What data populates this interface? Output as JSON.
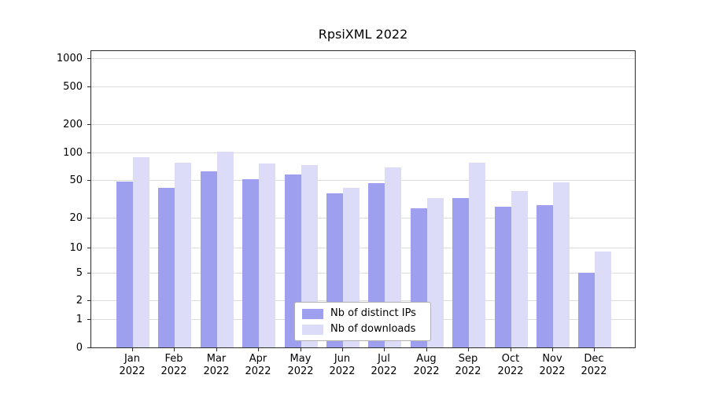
{
  "title": "RpsiXML 2022",
  "chart_data": {
    "type": "bar",
    "categories": [
      "Jan 2022",
      "Feb 2022",
      "Mar 2022",
      "Apr 2022",
      "May 2022",
      "Jun 2022",
      "Jul 2022",
      "Aug 2022",
      "Sep 2022",
      "Oct 2022",
      "Nov 2022",
      "Dec 2022"
    ],
    "series": [
      {
        "name": "Nb of distinct IPs",
        "color": "#9f9ff0",
        "values": [
          48,
          41,
          62,
          51,
          57,
          36,
          46,
          25,
          32,
          26,
          27,
          5
        ]
      },
      {
        "name": "Nb of downloads",
        "color": "#dcdcf8",
        "values": [
          88,
          78,
          102,
          76,
          73,
          41,
          68,
          32,
          78,
          38,
          47,
          9
        ]
      }
    ],
    "yticks": [
      0,
      1,
      2,
      5,
      10,
      20,
      50,
      100,
      200,
      500,
      1000
    ],
    "yscale": "log-like",
    "ylim": [
      0,
      1000
    ],
    "xlabel": "",
    "ylabel": "",
    "grid": true,
    "legend_position": "lower center"
  },
  "colors": {
    "grid": "#dcdcdc",
    "axis": "#2b2b2b",
    "background": "#ffffff"
  }
}
